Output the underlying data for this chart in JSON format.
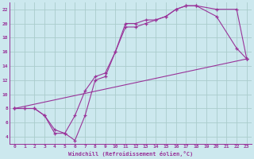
{
  "xlabel": "Windchill (Refroidissement éolien,°C)",
  "xlim": [
    -0.5,
    23.5
  ],
  "ylim": [
    3,
    23
  ],
  "xticks": [
    0,
    1,
    2,
    3,
    4,
    5,
    6,
    7,
    8,
    9,
    10,
    11,
    12,
    13,
    14,
    15,
    16,
    17,
    18,
    19,
    20,
    21,
    22,
    23
  ],
  "yticks": [
    4,
    6,
    8,
    10,
    12,
    14,
    16,
    18,
    20,
    22
  ],
  "bg_color": "#cce8ee",
  "line_color": "#993399",
  "grid_color": "#aacccc",
  "curve1_x": [
    0,
    1,
    2,
    3,
    4,
    5,
    6,
    7,
    8,
    9,
    10,
    11,
    12,
    13,
    14,
    15,
    16,
    17,
    18,
    20,
    22,
    23
  ],
  "curve1_y": [
    8,
    8,
    8,
    7,
    4.5,
    4.5,
    7,
    10.5,
    12.5,
    13,
    16,
    20,
    20,
    20.5,
    20.5,
    21,
    22,
    22.5,
    22.5,
    22,
    22,
    15
  ],
  "curve2_x": [
    0,
    1,
    2,
    3,
    4,
    5,
    6,
    7,
    8,
    9,
    10,
    11,
    12,
    13,
    14,
    15,
    16,
    17,
    18,
    20,
    22,
    23
  ],
  "curve2_y": [
    8,
    8,
    8,
    7,
    5,
    4.5,
    3.5,
    7,
    12,
    12.5,
    16,
    19.5,
    19.5,
    20,
    20.5,
    21,
    22,
    22.5,
    22.5,
    21,
    16.5,
    15
  ],
  "curve3_x": [
    0,
    23
  ],
  "curve3_y": [
    8,
    15
  ]
}
